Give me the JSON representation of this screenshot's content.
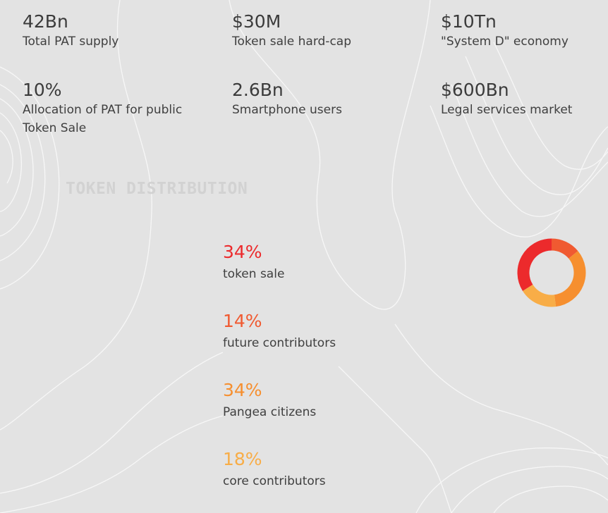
{
  "stats": [
    {
      "value": "42Bn",
      "label": "Total PAT supply"
    },
    {
      "value": "$30M",
      "label": "Token sale hard-cap"
    },
    {
      "value": "$10Tn",
      "label": "\"System D\" economy"
    },
    {
      "value": "10%",
      "label": "Allocation of PAT for public Token Sale"
    },
    {
      "value": "2.6Bn",
      "label": "Smartphone users"
    },
    {
      "value": "$600Bn",
      "label": "Legal services market"
    }
  ],
  "section_title": "TOKEN DISTRIBUTION",
  "distribution": [
    {
      "percent": "34%",
      "label": "token sale",
      "share": 34,
      "color": "#ec2a2c"
    },
    {
      "percent": "14%",
      "label": "future contributors",
      "share": 14,
      "color": "#f05a31"
    },
    {
      "percent": "34%",
      "label": "Pangea citizens",
      "share": 34,
      "color": "#f68f2f"
    },
    {
      "percent": "18%",
      "label": "core contributors",
      "share": 18,
      "color": "#f8ad47"
    }
  ],
  "colors": {
    "background": "#e3e3e3",
    "contour_lines": "#f7f7f7"
  }
}
